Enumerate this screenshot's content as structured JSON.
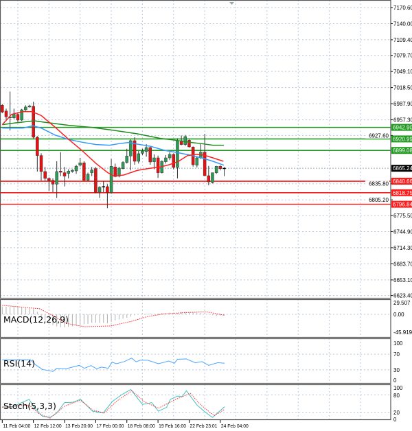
{
  "chart_data": {
    "type": "candlestick",
    "grid": true,
    "colors": {
      "up": "#2f9a56",
      "down": "#e81010",
      "resistance": "#1f9a1f",
      "support": "#ff1a1a",
      "ma_fast": "#ff2020",
      "ma_mid": "#3399ff",
      "ma_slow": "#1e8c1e",
      "rsi": "#4da6ff",
      "stoch_main": "#40c0c0",
      "stoch_signal": "#ff3030",
      "macd_hist": "#b0b0b0",
      "macd_signal": "#ff2020"
    },
    "price_axis": {
      "ticks": [
        "7170.60",
        "7140.00",
        "7109.40",
        "7079.70",
        "7049.10",
        "7018.50",
        "6987.90",
        "6957.30",
        "6927.60",
        "6835.80",
        "6805.20",
        "6775.50",
        "6744.90",
        "6714.30",
        "6683.70",
        "6653.10",
        "6623.40"
      ],
      "range": [
        6610,
        7179
      ]
    },
    "time_axis": {
      "labels": [
        {
          "i": 0,
          "text": "11 Feb 04:00"
        },
        {
          "i": 8,
          "text": "12 Feb 12:00"
        },
        {
          "i": 16,
          "text": "13 Feb 20:00"
        },
        {
          "i": 24,
          "text": "17 Feb 00:00"
        },
        {
          "i": 32,
          "text": "18 Feb 08:00"
        },
        {
          "i": 40,
          "text": "19 Feb 16:00"
        },
        {
          "i": 48,
          "text": "22 Feb 23:01"
        },
        {
          "i": 56,
          "text": "24 Feb 04:00"
        }
      ]
    },
    "current_price": {
      "value": 6865.24,
      "label": "6865.24"
    },
    "levels": [
      {
        "value": 6942.9,
        "label": "6942.90",
        "kind": "resistance"
      },
      {
        "value": 6920.99,
        "label": "6920.99",
        "kind": "resistance"
      },
      {
        "value": 6899.08,
        "label": "6899.08",
        "kind": "resistance"
      },
      {
        "value": 6840.66,
        "label": "6840.66",
        "kind": "support"
      },
      {
        "value": 6818.75,
        "label": "6818.75",
        "kind": "support"
      },
      {
        "value": 6796.84,
        "label": "6796.84",
        "kind": "support"
      }
    ],
    "ohlc": [
      [
        6985,
        6987,
        6970,
        6972
      ],
      [
        6974,
        6978.5,
        6955,
        6963
      ],
      [
        6961,
        7011,
        6937,
        6963
      ],
      [
        6961,
        6978.5,
        6959,
        6967.6
      ],
      [
        6967.6,
        6972,
        6952.4,
        6956.8
      ],
      [
        6956.8,
        6978,
        6955,
        6976.3
      ],
      [
        6976.3,
        6985,
        6974.2,
        6981.6
      ],
      [
        6981.6,
        6985.9,
        6980.7,
        6983.7
      ],
      [
        6982.9,
        6991.5,
        6922,
        6924.2
      ],
      [
        6924.2,
        6926.3,
        6859,
        6889.4
      ],
      [
        6889.4,
        6893.7,
        6841.6,
        6859
      ],
      [
        6859,
        6867.7,
        6841.6,
        6846
      ],
      [
        6846,
        6848,
        6822,
        6841.6
      ],
      [
        6842.4,
        6846,
        6819.8,
        6835.1
      ],
      [
        6835.1,
        6878.5,
        6809,
        6859
      ],
      [
        6859.8,
        6895.9,
        6850.3,
        6857.7
      ],
      [
        6856.8,
        6867.7,
        6830.7,
        6850.3
      ],
      [
        6855.5,
        6863.3,
        6846,
        6859.8
      ],
      [
        6859,
        6863,
        6857,
        6861.6
      ],
      [
        6860.3,
        6872,
        6854.6,
        6869
      ],
      [
        6871.1,
        6885,
        6868.5,
        6875.5
      ],
      [
        6875.5,
        6878.5,
        6841.6,
        6842.4
      ],
      [
        6842.4,
        6857,
        6840.7,
        6853.8
      ],
      [
        6856.8,
        6867.7,
        6850.3,
        6862
      ],
      [
        6864.6,
        6867.7,
        6817.7,
        6819
      ],
      [
        6819.8,
        6831,
        6809,
        6829.4
      ],
      [
        6830.7,
        6841,
        6819.8,
        6830.3
      ],
      [
        6830.3,
        6835,
        6789.4,
        6819
      ],
      [
        6819,
        6882.9,
        6816.8,
        6869
      ],
      [
        6867.7,
        6874.2,
        6848.1,
        6849.4
      ],
      [
        6850.3,
        6868,
        6848,
        6865.5
      ],
      [
        6864.6,
        6878.5,
        6863.3,
        6876.4
      ],
      [
        6876.4,
        6902.4,
        6874.2,
        6888.5
      ],
      [
        6888.5,
        6919.8,
        6861.2,
        6917.7
      ],
      [
        6917.7,
        6924.2,
        6872,
        6878.5
      ],
      [
        6878.5,
        6898,
        6874.2,
        6892.9
      ],
      [
        6893.7,
        6902.4,
        6890.3,
        6898.1
      ],
      [
        6897.2,
        6911.1,
        6887.2,
        6904.6
      ],
      [
        6904.6,
        6906.8,
        6872,
        6877.2
      ],
      [
        6877.7,
        6891.6,
        6863.3,
        6885
      ],
      [
        6885,
        6889.4,
        6846.8,
        6856.8
      ],
      [
        6856.8,
        6880,
        6855.5,
        6878.5
      ],
      [
        6877.7,
        6890.3,
        6874.2,
        6885
      ],
      [
        6885,
        6895.9,
        6880.7,
        6891.6
      ],
      [
        6891.6,
        6893.7,
        6863.3,
        6866.8
      ],
      [
        6866.8,
        6922,
        6845.9,
        6917.7
      ],
      [
        6917.7,
        6927.6,
        6909,
        6910.3
      ],
      [
        6910.3,
        6928.5,
        6907.7,
        6925.5
      ],
      [
        6918.5,
        6919.8,
        6904.6,
        6905.9
      ],
      [
        6905.5,
        6906.8,
        6868.5,
        6872
      ],
      [
        6871.1,
        6887.2,
        6866.8,
        6885
      ],
      [
        6885,
        6911.1,
        6882.9,
        6895.9
      ],
      [
        6895.9,
        6930.7,
        6850.3,
        6851.1
      ],
      [
        6851.1,
        6869.8,
        6832.9,
        6839.4
      ],
      [
        6838.1,
        6857,
        6836.4,
        6856.8
      ],
      [
        6856.8,
        6869.8,
        6854.6,
        6869
      ],
      [
        6869,
        6871,
        6861.2,
        6864.6
      ],
      [
        6865.5,
        6867.7,
        6850.3,
        6865.2
      ]
    ],
    "moving_averages": {
      "fast": [
        [
          0,
          6948.1
        ],
        [
          2.4,
          6967.6
        ],
        [
          5.3,
          6972.9
        ],
        [
          7.6,
          6972.9
        ],
        [
          10,
          6965.5
        ],
        [
          13.5,
          6943.7
        ],
        [
          17.1,
          6919.8
        ],
        [
          20.6,
          6898.1
        ],
        [
          24.1,
          6874.2
        ],
        [
          27.1,
          6856.8
        ],
        [
          28.8,
          6850.3
        ],
        [
          31.2,
          6852.4
        ],
        [
          34.7,
          6861.2
        ],
        [
          38.2,
          6865.5
        ],
        [
          40.6,
          6867.7
        ],
        [
          42.9,
          6872
        ],
        [
          45.3,
          6878.5
        ],
        [
          47.6,
          6889.4
        ],
        [
          50,
          6891.6
        ],
        [
          51.8,
          6890.3
        ],
        [
          54.1,
          6885
        ],
        [
          56.8,
          6878.5
        ]
      ],
      "mid": [
        [
          0,
          6941.6
        ],
        [
          5.3,
          6941.6
        ],
        [
          7.9,
          6945.9
        ],
        [
          10,
          6941.6
        ],
        [
          13.5,
          6928.5
        ],
        [
          17.1,
          6919.8
        ],
        [
          20.6,
          6914.6
        ],
        [
          24.1,
          6910.3
        ],
        [
          27.6,
          6909
        ],
        [
          30,
          6912
        ],
        [
          32.4,
          6914.2
        ],
        [
          34.7,
          6911.1
        ],
        [
          38.2,
          6906.8
        ],
        [
          41.8,
          6899
        ],
        [
          45.3,
          6894.6
        ],
        [
          48.2,
          6890.3
        ],
        [
          51.2,
          6885
        ],
        [
          54.1,
          6878.5
        ],
        [
          56.9,
          6871.1
        ]
      ],
      "slow": [
        [
          0,
          6948.1
        ],
        [
          2.9,
          6951.1
        ],
        [
          8.2,
          6955.5
        ],
        [
          11.2,
          6952.4
        ],
        [
          17.1,
          6946.8
        ],
        [
          23,
          6942.9
        ],
        [
          28.8,
          6937.2
        ],
        [
          34.7,
          6930.7
        ],
        [
          40.6,
          6922
        ],
        [
          45.3,
          6917.7
        ],
        [
          48.2,
          6914.6
        ],
        [
          51.2,
          6912
        ],
        [
          54.1,
          6909
        ],
        [
          56.9,
          6909
        ]
      ]
    },
    "macd": {
      "label": "MACD(12,26,9)",
      "axis": [
        "29.507",
        "0.00",
        "-45.919"
      ],
      "range": [
        -45.919,
        29.507
      ],
      "histogram": [
        18,
        18,
        17,
        17,
        16,
        16,
        15,
        14,
        12,
        6,
        -5,
        -14,
        -20,
        -25,
        -28,
        -30,
        -30,
        -29,
        -28,
        -26,
        -25,
        -23,
        -22,
        -20,
        -20,
        -20,
        -20,
        -21,
        -18,
        -14,
        -12,
        -10,
        -8,
        -5,
        -2,
        0,
        1,
        1,
        2,
        1,
        2,
        3,
        3,
        4,
        4,
        3,
        5,
        6,
        5,
        4,
        3,
        3,
        4,
        1,
        -2,
        -4,
        -3,
        -3
      ],
      "signal": [
        [
          0,
          21
        ],
        [
          9.6,
          13
        ],
        [
          13,
          -3
        ],
        [
          16.4,
          -21
        ],
        [
          21.1,
          -29
        ],
        [
          27.9,
          -27
        ],
        [
          33.3,
          -16
        ],
        [
          37.4,
          -5
        ],
        [
          41.5,
          1
        ],
        [
          46.9,
          4
        ],
        [
          52.3,
          6
        ],
        [
          57,
          -2
        ]
      ]
    },
    "rsi": {
      "label": "RSI(14)",
      "axis": [
        "100",
        "70",
        "30",
        "0"
      ],
      "range": [
        0,
        100
      ],
      "values": [
        [
          0,
          55.6
        ],
        [
          7.2,
          56
        ],
        [
          8.6,
          42.6
        ],
        [
          10.3,
          31
        ],
        [
          13,
          26
        ],
        [
          14,
          34
        ],
        [
          16.4,
          33
        ],
        [
          19.8,
          41.5
        ],
        [
          21.1,
          34
        ],
        [
          22.8,
          41
        ],
        [
          24.2,
          33
        ],
        [
          25.5,
          37
        ],
        [
          27.2,
          34
        ],
        [
          28.2,
          49.7
        ],
        [
          29.3,
          45.6
        ],
        [
          31.3,
          51
        ],
        [
          33.2,
          60
        ],
        [
          34.4,
          50.6
        ],
        [
          35.4,
          54.6
        ],
        [
          37.4,
          54.6
        ],
        [
          40.1,
          45.6
        ],
        [
          42.8,
          52.6
        ],
        [
          44.2,
          47
        ],
        [
          45,
          57
        ],
        [
          47.2,
          58
        ],
        [
          49.6,
          48
        ],
        [
          51.3,
          51
        ],
        [
          53,
          41.5
        ],
        [
          55.4,
          48.5
        ],
        [
          57.1,
          47
        ]
      ]
    },
    "stoch": {
      "label": "Stoch(5,3,3)",
      "axis": [
        "100",
        "80",
        "20",
        "0"
      ],
      "range": [
        0,
        100
      ],
      "main": [
        [
          0,
          40
        ],
        [
          2.1,
          37
        ],
        [
          6.9,
          65
        ],
        [
          8.2,
          38
        ],
        [
          10.3,
          8
        ],
        [
          12.3,
          4
        ],
        [
          14,
          19
        ],
        [
          16,
          54
        ],
        [
          18.1,
          55
        ],
        [
          20.1,
          65
        ],
        [
          23.2,
          25
        ],
        [
          25.9,
          19
        ],
        [
          28.3,
          58
        ],
        [
          30.6,
          80
        ],
        [
          33,
          98
        ],
        [
          36,
          48
        ],
        [
          38.4,
          54
        ],
        [
          40.1,
          25
        ],
        [
          42.2,
          38
        ],
        [
          43.2,
          65
        ],
        [
          45,
          76
        ],
        [
          46.2,
          74
        ],
        [
          47.3,
          94
        ],
        [
          50,
          46
        ],
        [
          52,
          23
        ],
        [
          54,
          4
        ],
        [
          57.1,
          40
        ]
      ],
      "signal": [
        [
          0,
          38
        ],
        [
          6.9,
          46
        ],
        [
          9.6,
          15
        ],
        [
          12.3,
          2
        ],
        [
          16,
          42
        ],
        [
          20.1,
          62
        ],
        [
          23.2,
          29
        ],
        [
          26.2,
          19
        ],
        [
          29.3,
          58
        ],
        [
          33.3,
          94
        ],
        [
          36.4,
          58
        ],
        [
          40.1,
          35
        ],
        [
          44.2,
          63
        ],
        [
          48.3,
          85
        ],
        [
          51,
          46
        ],
        [
          54.4,
          10
        ],
        [
          57.1,
          31
        ]
      ]
    }
  }
}
